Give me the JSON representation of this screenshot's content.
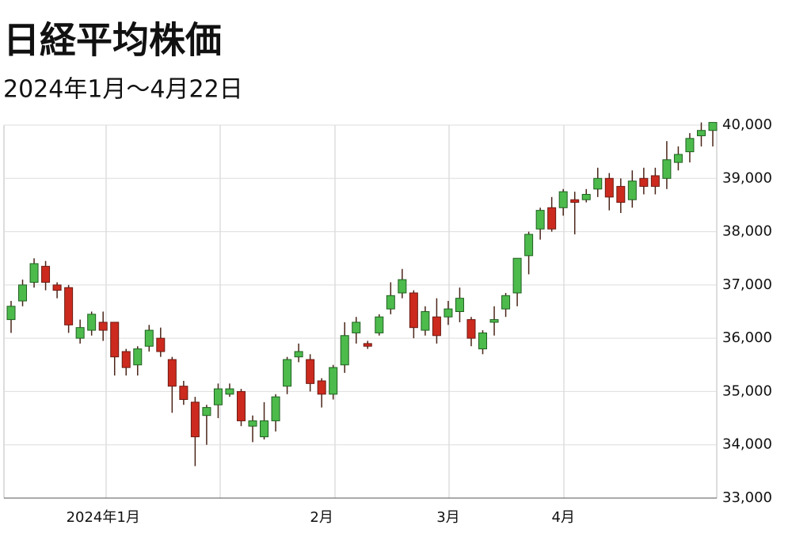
{
  "chart_data": {
    "type": "candlestick",
    "title": "日経平均株価",
    "subtitle": "2024年1月～4月22日",
    "categories": [
      null,
      null,
      null,
      null,
      null,
      null,
      null,
      null,
      "2024年1月",
      null,
      null,
      null,
      null,
      null,
      null,
      null,
      null,
      null,
      null,
      null,
      null,
      null,
      null,
      null,
      null,
      null,
      null,
      "2月",
      null,
      null,
      null,
      null,
      null,
      null,
      null,
      null,
      null,
      null,
      "3月",
      null,
      null,
      null,
      null,
      null,
      null,
      null,
      null,
      null,
      "4月",
      null,
      null,
      null,
      null,
      null,
      null,
      null,
      null,
      null,
      null,
      null,
      null,
      null
    ],
    "open": [
      36350,
      36700,
      37050,
      37350,
      37000,
      36950,
      36000,
      36150,
      36300,
      36300,
      35750,
      35500,
      35850,
      36000,
      35600,
      35100,
      34800,
      34550,
      34750,
      34950,
      35000,
      34350,
      34150,
      34450,
      35100,
      35650,
      35600,
      35200,
      34950,
      35500,
      36100,
      35900,
      36100,
      36550,
      36850,
      36850,
      36150,
      36400,
      36400,
      36500,
      36350,
      35800,
      36300,
      36550,
      36850,
      37550,
      38050,
      38450,
      38450,
      38600,
      38600,
      38800,
      39000,
      38850,
      38600,
      39000,
      39050,
      39000,
      39300,
      39500,
      39800,
      39900
    ],
    "high": [
      36700,
      37100,
      37500,
      37450,
      37050,
      37000,
      36350,
      36500,
      36500,
      36300,
      35800,
      35850,
      36250,
      36200,
      35650,
      35200,
      34900,
      34750,
      35150,
      35150,
      35050,
      34550,
      34800,
      34950,
      35650,
      35900,
      35700,
      35250,
      35500,
      36300,
      36400,
      35950,
      36450,
      37050,
      37300,
      36900,
      36600,
      36750,
      36700,
      36950,
      36400,
      36150,
      36600,
      36850,
      37500,
      38000,
      38450,
      38650,
      38800,
      38750,
      38800,
      39200,
      39100,
      39000,
      39150,
      39200,
      39200,
      39700,
      39600,
      39850,
      40050,
      40050
    ],
    "low": [
      36100,
      36600,
      36950,
      36900,
      36750,
      36100,
      35900,
      36050,
      35950,
      35300,
      35300,
      35300,
      35750,
      35650,
      34600,
      34750,
      33600,
      34000,
      34500,
      34900,
      34350,
      34050,
      34100,
      34250,
      34950,
      35550,
      35000,
      34700,
      34850,
      35350,
      35900,
      35800,
      36050,
      36450,
      36750,
      36000,
      36050,
      35900,
      36250,
      36300,
      35850,
      35700,
      36050,
      36400,
      36600,
      37200,
      37850,
      38000,
      38300,
      37950,
      38550,
      38650,
      38400,
      38350,
      38450,
      38700,
      38700,
      38800,
      39150,
      39300,
      39600,
      39600
    ],
    "close": [
      36600,
      37000,
      37400,
      37050,
      36900,
      36250,
      36200,
      36450,
      36150,
      35650,
      35450,
      35800,
      36150,
      35750,
      35100,
      34850,
      34150,
      34700,
      35050,
      35050,
      34450,
      34450,
      34450,
      34900,
      35600,
      35750,
      35150,
      34950,
      35450,
      36050,
      36300,
      35850,
      36400,
      36800,
      37100,
      36200,
      36500,
      36050,
      36550,
      36750,
      36000,
      36100,
      36350,
      36800,
      37500,
      37950,
      38400,
      38050,
      38750,
      38550,
      38700,
      39000,
      38650,
      38550,
      38950,
      38850,
      38850,
      39350,
      39450,
      39750,
      39900,
      40050
    ],
    "up_color": "#4cbb4c",
    "down_color": "#cc2a1e",
    "ylim": [
      33000,
      40000
    ],
    "yticks": [
      {
        "value": 33000,
        "label": "33,000"
      },
      {
        "value": 34000,
        "label": "34,000"
      },
      {
        "value": 35000,
        "label": "35,000"
      },
      {
        "value": 36000,
        "label": "36,000"
      },
      {
        "value": 37000,
        "label": "37,000"
      },
      {
        "value": 38000,
        "label": "38,000"
      },
      {
        "value": 39000,
        "label": "39,000"
      },
      {
        "value": 40000,
        "label": "40,000"
      }
    ],
    "grid": true
  }
}
